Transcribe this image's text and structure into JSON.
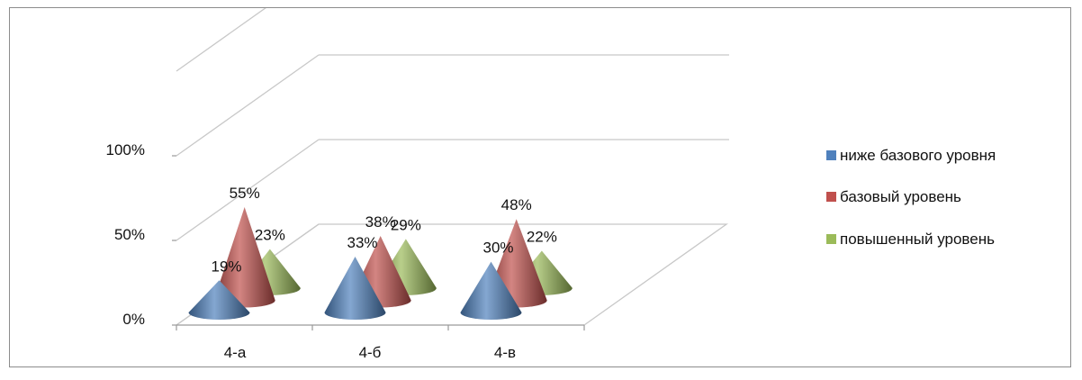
{
  "chart_data": {
    "type": "bar",
    "shape": "cone-3d",
    "categories": [
      "4-а",
      "4-б",
      "4-в"
    ],
    "series": [
      {
        "name": "ниже базового уровня",
        "color": "#4f81bd",
        "values": [
          19,
          33,
          30
        ],
        "labels": [
          "19%",
          "33%",
          "30%"
        ]
      },
      {
        "name": "базовый уровень",
        "color": "#c0504d",
        "values": [
          55,
          38,
          48
        ],
        "labels": [
          "55%",
          "38%",
          "48%"
        ]
      },
      {
        "name": "повышенный уровень",
        "color": "#9bbb59",
        "values": [
          23,
          29,
          22
        ],
        "labels": [
          "23%",
          "29%",
          "22%"
        ]
      }
    ],
    "y_ticks": [
      "0%",
      "50%",
      "100%"
    ],
    "ylim": [
      0,
      100
    ],
    "legend_position": "right",
    "grid": true
  }
}
